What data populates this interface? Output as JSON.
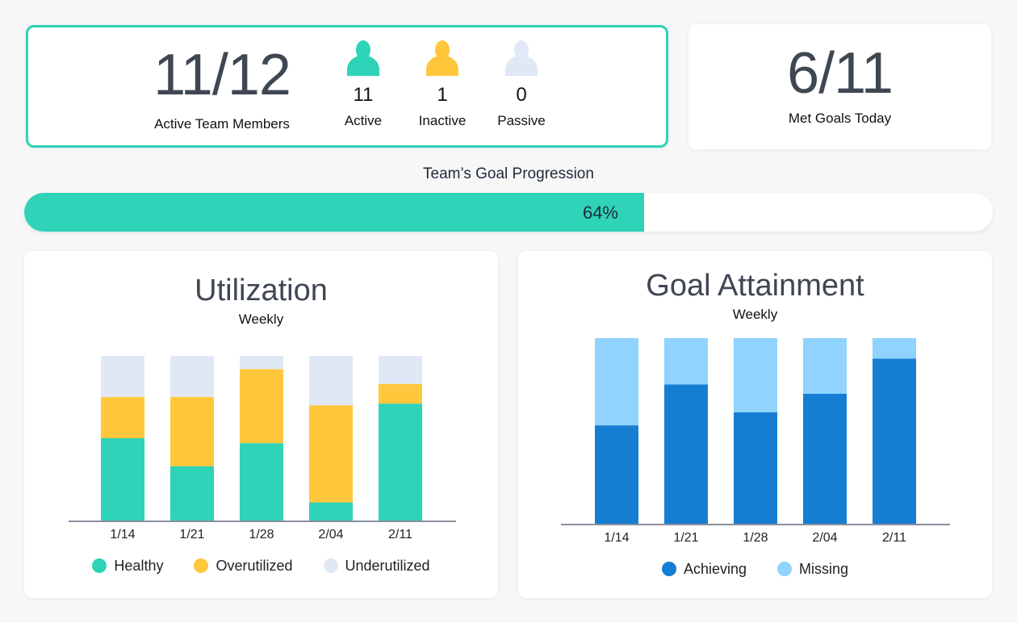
{
  "team": {
    "ratio": "11/12",
    "label": "Active Team Members",
    "stats": [
      {
        "count": "11",
        "label": "Active",
        "color": "#2fd3b7",
        "icon": "person-icon"
      },
      {
        "count": "1",
        "label": "Inactive",
        "color": "#ffc73b",
        "icon": "person-icon"
      },
      {
        "count": "0",
        "label": "Passive",
        "color": "#e1e8f5",
        "icon": "person-icon"
      }
    ]
  },
  "goals": {
    "ratio": "6/11",
    "label": "Met Goals Today"
  },
  "progress": {
    "title": "Team’s Goal Progression",
    "percent": 64,
    "text": "64%",
    "color": "#2fd3b7"
  },
  "chart_data": [
    {
      "type": "bar",
      "stacked": true,
      "title": "Utilization",
      "subtitle": "Weekly",
      "categories": [
        "1/14",
        "1/21",
        "1/28",
        "2/04",
        "2/11"
      ],
      "ylim": [
        0,
        100
      ],
      "series": [
        {
          "name": "Healthy",
          "color": "#2fd3b7",
          "values": [
            50,
            33,
            47,
            11,
            71
          ]
        },
        {
          "name": "Overutilized",
          "color": "#ffc73b",
          "values": [
            25,
            42,
            45,
            59,
            12
          ]
        },
        {
          "name": "Underutilized",
          "color": "#e1e8f5",
          "values": [
            25,
            25,
            8,
            30,
            17
          ]
        }
      ],
      "legend": "bottom"
    },
    {
      "type": "bar",
      "stacked": true,
      "title": "Goal Attainment",
      "subtitle": "Weekly",
      "categories": [
        "1/14",
        "1/21",
        "1/28",
        "2/04",
        "2/11"
      ],
      "ylim": [
        0,
        100
      ],
      "series": [
        {
          "name": "Achieving",
          "color": "#157ed2",
          "values": [
            53,
            75,
            60,
            70,
            89
          ]
        },
        {
          "name": "Missing",
          "color": "#8fd3fe",
          "values": [
            47,
            25,
            40,
            30,
            11
          ]
        }
      ],
      "legend": "bottom"
    }
  ]
}
